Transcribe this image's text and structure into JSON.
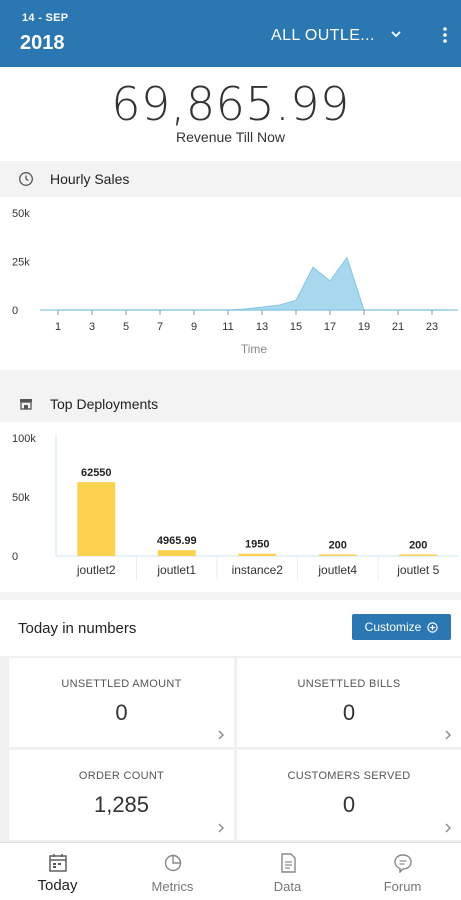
{
  "header": {
    "date_day": "14 - SEP",
    "date_year": "2018",
    "outlet_selector": "ALL OUTLE...",
    "icons": [
      "chevron-down-icon",
      "more-vertical-icon"
    ]
  },
  "revenue": {
    "value": "69,865.99",
    "label": "Revenue Till Now"
  },
  "hourly_section": {
    "title": "Hourly Sales",
    "icon": "clock-icon"
  },
  "deploy_section": {
    "title": "Top Deployments",
    "icon": "store-icon"
  },
  "chart_data": [
    {
      "type": "area",
      "title": "Hourly Sales",
      "xlabel": "Time",
      "ylabel": "",
      "x": [
        1,
        2,
        3,
        4,
        5,
        6,
        7,
        8,
        9,
        10,
        11,
        12,
        13,
        14,
        15,
        16,
        17,
        18,
        19,
        20,
        21,
        22,
        23,
        24
      ],
      "xticks": [
        "1",
        "3",
        "5",
        "7",
        "9",
        "11",
        "13",
        "15",
        "17",
        "19",
        "21",
        "23"
      ],
      "yticks": [
        "50k",
        "25k",
        "0"
      ],
      "ylim": [
        0,
        50000
      ],
      "values": [
        0,
        0,
        0,
        0,
        0,
        0,
        0,
        0,
        0,
        0,
        0,
        500,
        1500,
        2500,
        5000,
        22000,
        15000,
        27000,
        0,
        0,
        0,
        0,
        0,
        0
      ],
      "color": "#a8d8ee"
    },
    {
      "type": "bar",
      "title": "Top Deployments",
      "categories": [
        "joutlet2",
        "joutlet1",
        "instance2",
        "joutlet4",
        "joutlet 5"
      ],
      "values": [
        62550,
        4965.99,
        1950,
        200,
        200
      ],
      "value_labels": [
        "62550",
        "4965.99",
        "1950",
        "200",
        "200"
      ],
      "yticks": [
        "100k",
        "50k",
        "0"
      ],
      "ylim": [
        0,
        100000
      ],
      "color": "#fbd150"
    }
  ],
  "numbers": {
    "title": "Today in numbers",
    "customize_label": "Customize",
    "customize_icon": "plus-circle-icon",
    "tiles": [
      {
        "label": "UNSETTLED AMOUNT",
        "value": "0"
      },
      {
        "label": "UNSETTLED BILLS",
        "value": "0"
      },
      {
        "label": "ORDER COUNT",
        "value": "1,285"
      },
      {
        "label": "CUSTOMERS SERVED",
        "value": "0"
      }
    ]
  },
  "bottom_nav": [
    {
      "label": "Today",
      "icon": "calendar-icon",
      "active": true
    },
    {
      "label": "Metrics",
      "icon": "pie-chart-icon",
      "active": false
    },
    {
      "label": "Data",
      "icon": "document-icon",
      "active": false
    },
    {
      "label": "Forum",
      "icon": "chat-bubble-icon",
      "active": false
    }
  ],
  "colors": {
    "header_bg": "#2a77b1",
    "area_fill": "#a8d8ee",
    "bar_fill": "#fbd150"
  }
}
